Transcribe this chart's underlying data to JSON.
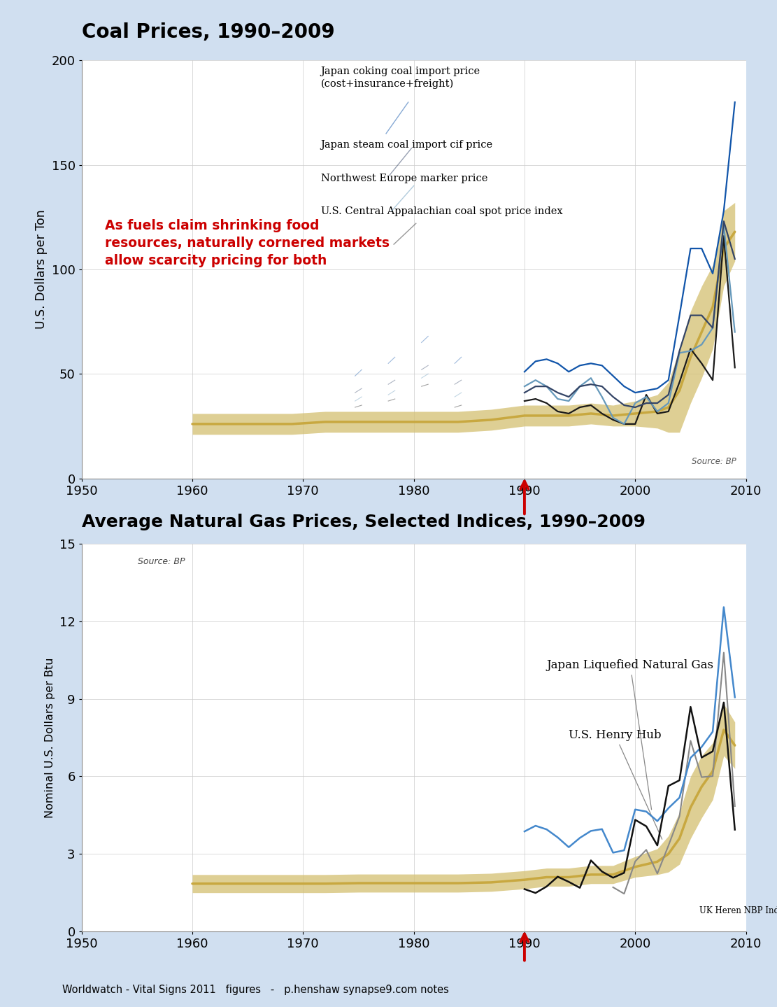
{
  "background_color": "#d0dff0",
  "plot_bg": "#ffffff",
  "title1": "Coal Prices, 1990–2009",
  "title2": "Average Natural Gas Prices, Selected Indices, 1990–2009",
  "footer": "Worldwatch - Vital Signs 2011   figures   -   p.henshaw synapse9.com notes",
  "coal_years": [
    1990,
    1991,
    1992,
    1993,
    1994,
    1995,
    1996,
    1997,
    1998,
    1999,
    2000,
    2001,
    2002,
    2003,
    2004,
    2005,
    2006,
    2007,
    2008,
    2009
  ],
  "coal_japan_coking": [
    51,
    56,
    57,
    55,
    51,
    54,
    55,
    54,
    49,
    44,
    41,
    42,
    43,
    47,
    78,
    110,
    110,
    98,
    128,
    180
  ],
  "coal_japan_steam": [
    41,
    44,
    44,
    41,
    39,
    44,
    45,
    44,
    39,
    35,
    34,
    36,
    36,
    40,
    61,
    78,
    78,
    72,
    123,
    105
  ],
  "coal_nw_europe": [
    44,
    47,
    44,
    38,
    37,
    44,
    48,
    39,
    29,
    26,
    36,
    39,
    32,
    36,
    60,
    61,
    64,
    72,
    121,
    70
  ],
  "coal_us_capp": [
    37,
    38,
    36,
    32,
    31,
    34,
    35,
    31,
    28,
    26,
    26,
    40,
    31,
    32,
    46,
    62,
    55,
    47,
    116,
    53
  ],
  "coal_trend_years": [
    1960,
    1963,
    1966,
    1969,
    1972,
    1975,
    1978,
    1981,
    1984,
    1987,
    1990,
    1992,
    1994,
    1996,
    1998,
    2000,
    2002,
    2003,
    2004,
    2005,
    2006,
    2007,
    2008,
    2009
  ],
  "coal_trend_vals": [
    26,
    26,
    26,
    26,
    27,
    27,
    27,
    27,
    27,
    28,
    30,
    30,
    30,
    31,
    30,
    31,
    32,
    34,
    42,
    58,
    70,
    82,
    110,
    118
  ],
  "coal_trend_width": [
    5,
    5,
    5,
    5,
    5,
    5,
    5,
    5,
    5,
    5,
    5,
    5,
    5,
    5,
    5,
    6,
    8,
    12,
    20,
    22,
    22,
    20,
    18,
    14
  ],
  "gas_years": [
    1990,
    1991,
    1992,
    1993,
    1994,
    1995,
    1996,
    1997,
    1998,
    1999,
    2000,
    2001,
    2002,
    2003,
    2004,
    2005,
    2006,
    2007,
    2008,
    2009
  ],
  "gas_japan_lng": [
    3.87,
    4.09,
    3.95,
    3.64,
    3.26,
    3.62,
    3.89,
    3.96,
    3.05,
    3.14,
    4.72,
    4.64,
    4.27,
    4.77,
    5.18,
    6.72,
    7.14,
    7.73,
    12.55,
    9.06
  ],
  "gas_henry_hub": [
    1.64,
    1.49,
    1.74,
    2.12,
    1.92,
    1.69,
    2.75,
    2.32,
    2.08,
    2.27,
    4.32,
    4.07,
    3.33,
    5.63,
    5.85,
    8.69,
    6.73,
    6.97,
    8.86,
    3.94
  ],
  "gas_uk_nbp": [
    null,
    null,
    null,
    null,
    null,
    null,
    null,
    null,
    1.71,
    1.46,
    2.71,
    3.16,
    2.24,
    3.32,
    4.46,
    7.38,
    5.97,
    6.01,
    10.79,
    4.85
  ],
  "gas_trend_years": [
    1960,
    1963,
    1966,
    1969,
    1972,
    1975,
    1978,
    1981,
    1984,
    1987,
    1990,
    1992,
    1994,
    1996,
    1998,
    2000,
    2002,
    2003,
    2004,
    2005,
    2006,
    2007,
    2008,
    2009
  ],
  "gas_trend_vals": [
    1.85,
    1.85,
    1.85,
    1.85,
    1.85,
    1.87,
    1.87,
    1.87,
    1.87,
    1.9,
    2.0,
    2.1,
    2.1,
    2.2,
    2.2,
    2.5,
    2.7,
    3.0,
    3.6,
    4.8,
    5.6,
    6.2,
    7.8,
    7.2
  ],
  "gas_trend_width": [
    0.35,
    0.35,
    0.35,
    0.35,
    0.35,
    0.35,
    0.35,
    0.35,
    0.35,
    0.35,
    0.35,
    0.35,
    0.35,
    0.35,
    0.35,
    0.4,
    0.5,
    0.7,
    1.0,
    1.2,
    1.2,
    1.1,
    1.0,
    0.9
  ],
  "coal_annotation_text": "As fuels claim shrinking food\nresources, naturally cornered markets\nallow scarcity pricing for both",
  "coal_source": "Source: BP",
  "gas_source": "Source: BP"
}
